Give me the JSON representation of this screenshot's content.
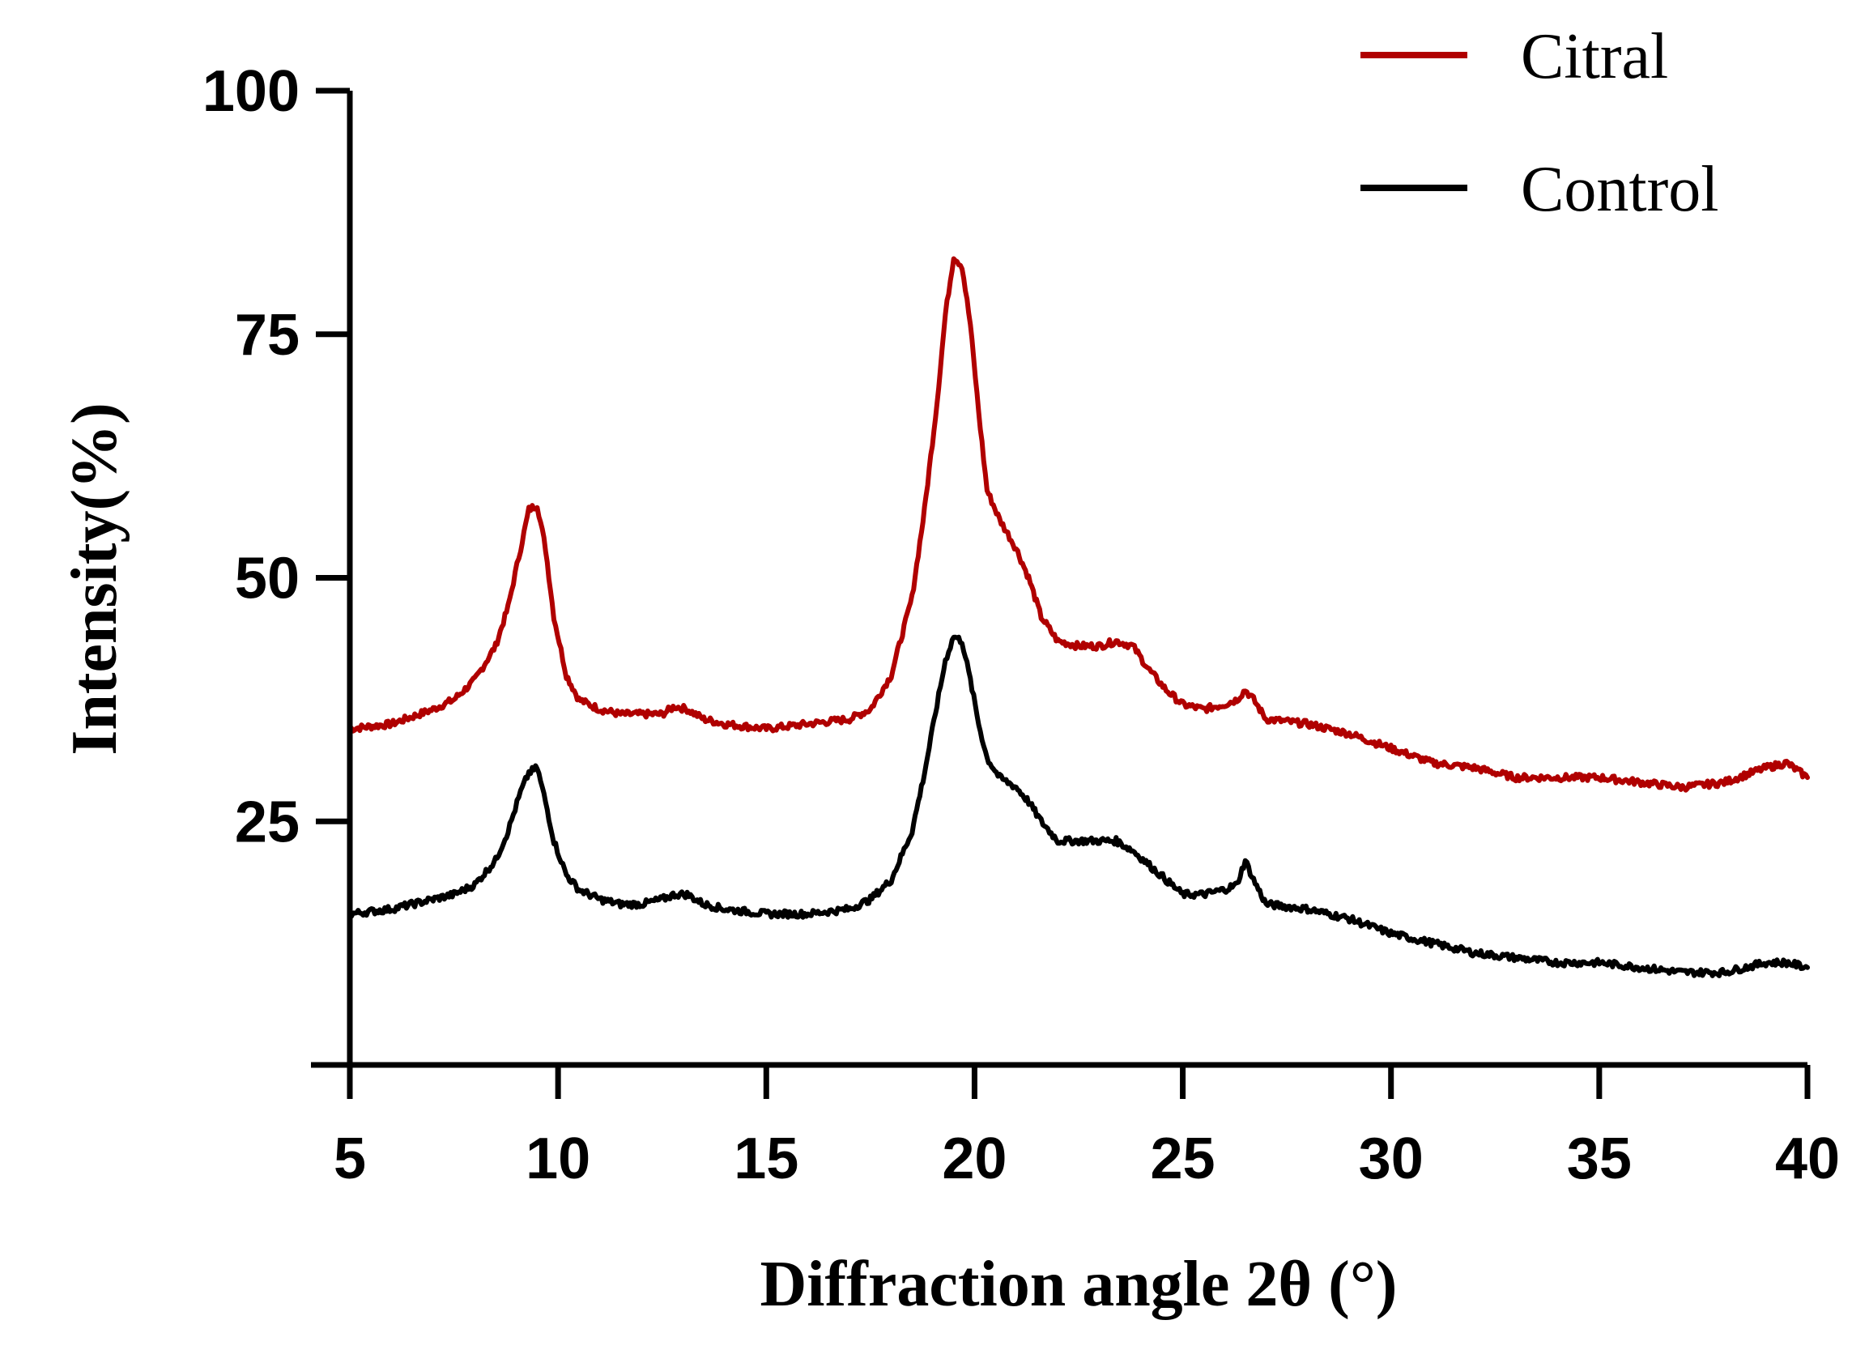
{
  "chart_data": {
    "type": "line",
    "title": "",
    "xlabel": "Diffraction angle 2θ (°)",
    "ylabel": "Intensity(%)",
    "xlim": [
      5,
      40
    ],
    "ylim": [
      0,
      100
    ],
    "xticks": [
      5,
      10,
      15,
      20,
      25,
      30,
      35,
      40
    ],
    "yticks": [
      25,
      50,
      75,
      100
    ],
    "xtick_labels": [
      "5",
      "10",
      "15",
      "20",
      "25",
      "30",
      "35",
      "40"
    ],
    "ytick_labels": [
      "25",
      "50",
      "75",
      "100"
    ],
    "grid": false,
    "legend_position": "top-right",
    "series": [
      {
        "name": "Citral",
        "color": "#b00000",
        "x": [
          5,
          6,
          7,
          7.5,
          8,
          8.5,
          8.8,
          9.1,
          9.3,
          9.5,
          9.7,
          9.9,
          10.2,
          10.5,
          11,
          11.5,
          12,
          12.5,
          12.8,
          13.1,
          13.5,
          14,
          15,
          16,
          17,
          17.5,
          18,
          18.5,
          18.8,
          19.1,
          19.3,
          19.5,
          19.7,
          19.9,
          20.1,
          20.3,
          20.6,
          21,
          21.3,
          21.6,
          22,
          22.5,
          23,
          23.4,
          23.8,
          24.2,
          24.6,
          25,
          25.5,
          26,
          26.3,
          26.5,
          26.7,
          27,
          28,
          29,
          30,
          31,
          32,
          33,
          34,
          35,
          36,
          37,
          38,
          39,
          39.5,
          40
        ],
        "y": [
          34.5,
          35,
          36.5,
          37.5,
          39.5,
          43,
          47,
          53,
          57,
          57.5,
          53,
          46,
          40,
          37.5,
          36.5,
          36,
          36,
          36,
          36.8,
          36.5,
          35.5,
          35,
          34.5,
          35,
          35.5,
          36.5,
          40,
          48,
          57,
          68,
          77,
          83,
          82,
          76,
          67,
          59,
          56,
          53,
          50,
          46,
          43.5,
          43,
          43,
          43.5,
          43,
          40.5,
          38.5,
          37,
          36.5,
          37,
          37.5,
          38.5,
          37.5,
          35.5,
          35,
          34,
          32.5,
          31,
          30.5,
          29.5,
          29.5,
          29.5,
          29,
          28.5,
          29,
          30.5,
          31,
          29.5
        ]
      },
      {
        "name": "Control",
        "color": "#000000",
        "x": [
          5,
          6,
          7,
          7.5,
          8,
          8.5,
          8.8,
          9.1,
          9.3,
          9.5,
          9.7,
          9.9,
          10.2,
          10.5,
          11,
          11.5,
          12,
          12.5,
          12.8,
          13.1,
          13.5,
          14,
          15,
          16,
          17,
          17.5,
          18,
          18.5,
          18.8,
          19.1,
          19.3,
          19.5,
          19.7,
          19.9,
          20.1,
          20.3,
          20.6,
          21,
          21.3,
          21.6,
          22,
          22.5,
          23,
          23.4,
          23.8,
          24.2,
          24.6,
          25,
          25.5,
          26,
          26.3,
          26.5,
          26.7,
          27,
          28,
          29,
          30,
          31,
          32,
          33,
          34,
          35,
          36,
          37,
          38,
          39,
          39.5,
          40
        ],
        "y": [
          15.5,
          16,
          17,
          17.5,
          18.5,
          21,
          24,
          28,
          30,
          30.5,
          27,
          23,
          19.5,
          18,
          17,
          16.5,
          16.5,
          17,
          17.5,
          17.5,
          16.5,
          16,
          15.5,
          15.5,
          16,
          17,
          19,
          24,
          30,
          37,
          41.5,
          44,
          43.5,
          39.5,
          35,
          31.5,
          29.5,
          28.5,
          27,
          25,
          23,
          23,
          23,
          23,
          22,
          20.5,
          19,
          17.5,
          17.5,
          18,
          18.5,
          21,
          19,
          16.5,
          16,
          15,
          13.5,
          12.5,
          11.5,
          11,
          10.5,
          10.5,
          10,
          9.5,
          9.5,
          10.5,
          10.5,
          10
        ]
      }
    ]
  }
}
